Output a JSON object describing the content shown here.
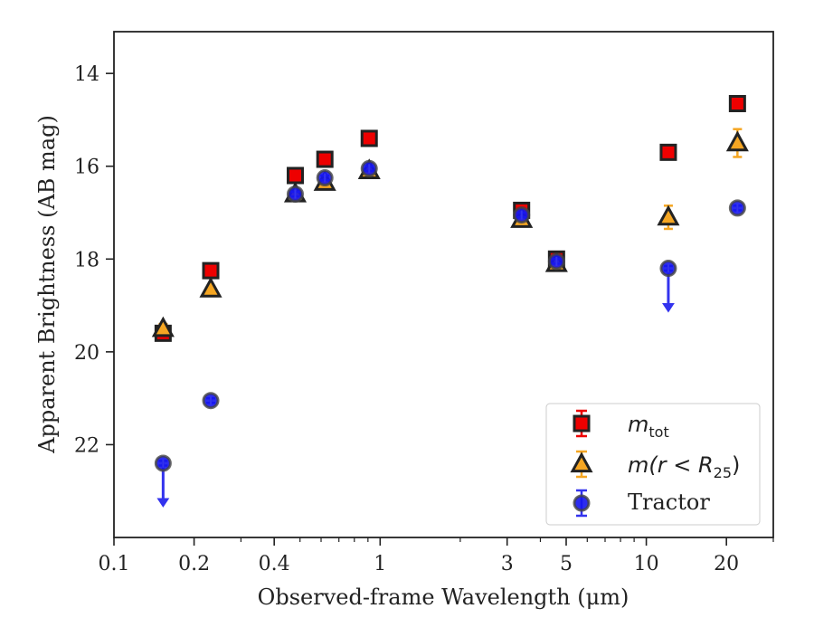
{
  "chart_data": {
    "type": "scatter",
    "xlabel": "Observed-frame Wavelength (μm)",
    "ylabel": "Apparent Brightness (AB mag)",
    "xscale": "log",
    "xlim": [
      0.1,
      30
    ],
    "ylim": [
      24.0,
      13.1
    ],
    "y_inverted": true,
    "xticks": [
      {
        "value": 0.1,
        "label": "0.1"
      },
      {
        "value": 0.2,
        "label": "0.2"
      },
      {
        "value": 0.4,
        "label": "0.4"
      },
      {
        "value": 1,
        "label": "1"
      },
      {
        "value": 3,
        "label": "3"
      },
      {
        "value": 5,
        "label": "5"
      },
      {
        "value": 10,
        "label": "10"
      },
      {
        "value": 20,
        "label": "20"
      }
    ],
    "yticks": [
      14,
      16,
      18,
      20,
      22
    ],
    "grid": false,
    "legend_position": "bottom-right",
    "series": [
      {
        "name": "m_tot",
        "label_main": "m",
        "label_sub": "tot",
        "marker": "square",
        "color": "#ee0000",
        "edge_color": "#222222",
        "error_color": "#ee0000",
        "points": [
          {
            "x": 0.153,
            "y": 19.6,
            "err": 0.15
          },
          {
            "x": 0.231,
            "y": 18.25,
            "err": 0.05
          },
          {
            "x": 0.48,
            "y": 16.2,
            "err": 0.05
          },
          {
            "x": 0.62,
            "y": 15.85,
            "err": 0.05
          },
          {
            "x": 0.91,
            "y": 15.4,
            "err": 0.05
          },
          {
            "x": 3.4,
            "y": 16.95,
            "err": 0.05
          },
          {
            "x": 4.6,
            "y": 18.0,
            "err": 0.05
          },
          {
            "x": 12.1,
            "y": 15.7,
            "err": 0.05
          },
          {
            "x": 22.0,
            "y": 14.65,
            "err": 0.05
          }
        ]
      },
      {
        "name": "m(r < R_25)",
        "label_main": "m(r < R",
        "label_sub": "25",
        "label_tail": ")",
        "marker": "triangle",
        "color": "#f5a623",
        "edge_color": "#222222",
        "error_color": "#f5a623",
        "points": [
          {
            "x": 0.153,
            "y": 19.5,
            "err": 0.1
          },
          {
            "x": 0.231,
            "y": 18.65,
            "err": 0.05
          },
          {
            "x": 0.48,
            "y": 16.6,
            "err": 0.05
          },
          {
            "x": 0.62,
            "y": 16.35,
            "err": 0.05
          },
          {
            "x": 0.91,
            "y": 16.1,
            "err": 0.05
          },
          {
            "x": 3.4,
            "y": 17.15,
            "err": 0.05
          },
          {
            "x": 4.6,
            "y": 18.1,
            "err": 0.05
          },
          {
            "x": 12.1,
            "y": 17.1,
            "err": 0.25
          },
          {
            "x": 22.0,
            "y": 15.5,
            "err": 0.3
          }
        ]
      },
      {
        "name": "Tractor",
        "marker": "circle",
        "color": "#1515ee",
        "edge_color": "#444444",
        "error_color": "#3333ee",
        "points": [
          {
            "x": 0.153,
            "y": 22.4,
            "err": 0.05,
            "upper_limit": true
          },
          {
            "x": 0.231,
            "y": 21.05,
            "err": 0.05
          },
          {
            "x": 0.48,
            "y": 16.6,
            "err": 0.05
          },
          {
            "x": 0.62,
            "y": 16.25,
            "err": 0.05
          },
          {
            "x": 0.91,
            "y": 16.05,
            "err": 0.05
          },
          {
            "x": 3.4,
            "y": 17.05,
            "err": 0.05
          },
          {
            "x": 4.6,
            "y": 18.05,
            "err": 0.05
          },
          {
            "x": 12.1,
            "y": 18.2,
            "err": 0.05,
            "upper_limit": true
          },
          {
            "x": 22.0,
            "y": 16.9,
            "err": 0.05
          }
        ]
      }
    ]
  },
  "legend": {
    "entries": [
      {
        "text": "m",
        "sub": "tot",
        "tail": ""
      },
      {
        "text": "m(r < R",
        "sub": "25",
        "tail": ")"
      },
      {
        "text": "Tractor",
        "sub": "",
        "tail": ""
      }
    ]
  }
}
